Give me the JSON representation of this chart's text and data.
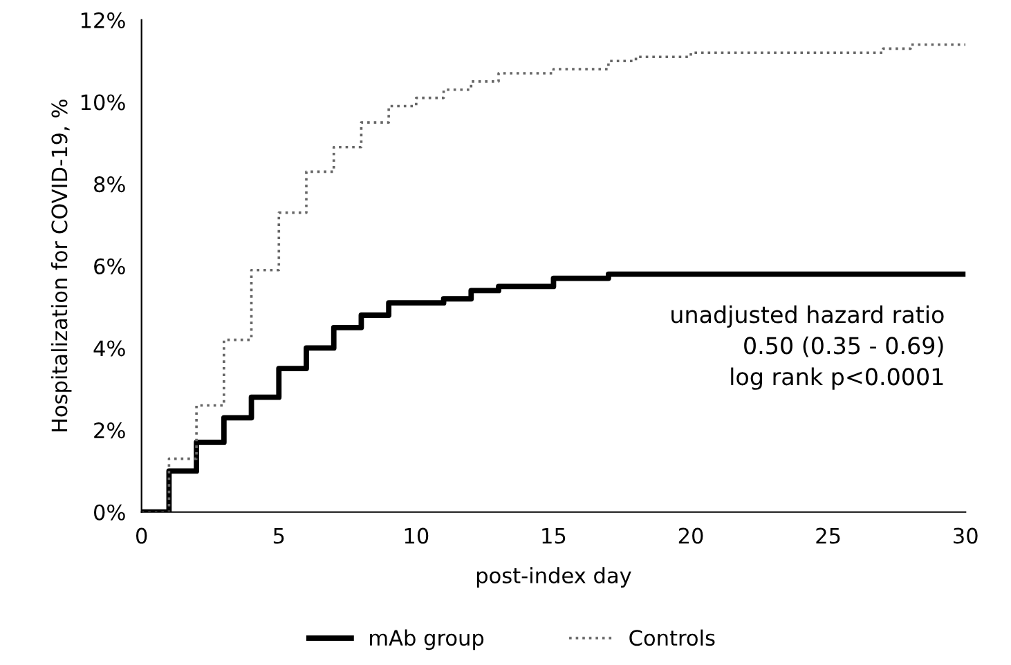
{
  "chart_data": {
    "type": "step",
    "xlabel": "post-index day",
    "ylabel": "Hospitalization for COVID-19, %",
    "xlim": [
      0,
      30
    ],
    "xticks": [
      0,
      5,
      10,
      15,
      20,
      25,
      30
    ],
    "ylim": [
      0,
      12
    ],
    "yticks": [
      {
        "value": 0,
        "label": "0%"
      },
      {
        "value": 2,
        "label": "2%"
      },
      {
        "value": 4,
        "label": "4%"
      },
      {
        "value": 6,
        "label": "6%"
      },
      {
        "value": 8,
        "label": "8%"
      },
      {
        "value": 10,
        "label": "10%"
      },
      {
        "value": 12,
        "label": "12%"
      }
    ],
    "grid": false,
    "legend": "bottom",
    "marker": "none",
    "annotations": [
      "unadjusted hazard ratio\n0.50 (0.35 - 0.69)\nlog rank p<0.0001"
    ],
    "series": [
      {
        "name": "mAb group",
        "color": "#000000",
        "line_style": "solid",
        "x": [
          0,
          1,
          2,
          3,
          4,
          5,
          6,
          7,
          8,
          9,
          11,
          12,
          13,
          15,
          17,
          30
        ],
        "values": [
          0,
          1.0,
          1.7,
          2.3,
          2.8,
          3.5,
          4.0,
          4.5,
          4.8,
          5.1,
          5.2,
          5.4,
          5.5,
          5.7,
          5.8,
          5.8
        ]
      },
      {
        "name": "Controls",
        "color": "#666666",
        "line_style": "dotted",
        "x": [
          0,
          1,
          2,
          3,
          4,
          5,
          6,
          7,
          8,
          9,
          10,
          11,
          12,
          13,
          15,
          17,
          18,
          20,
          27,
          28,
          30
        ],
        "values": [
          0,
          1.3,
          2.6,
          4.2,
          5.9,
          7.3,
          8.3,
          8.9,
          9.5,
          9.9,
          10.1,
          10.3,
          10.5,
          10.7,
          10.8,
          11.0,
          11.1,
          11.2,
          11.3,
          11.4,
          11.4
        ]
      }
    ]
  }
}
